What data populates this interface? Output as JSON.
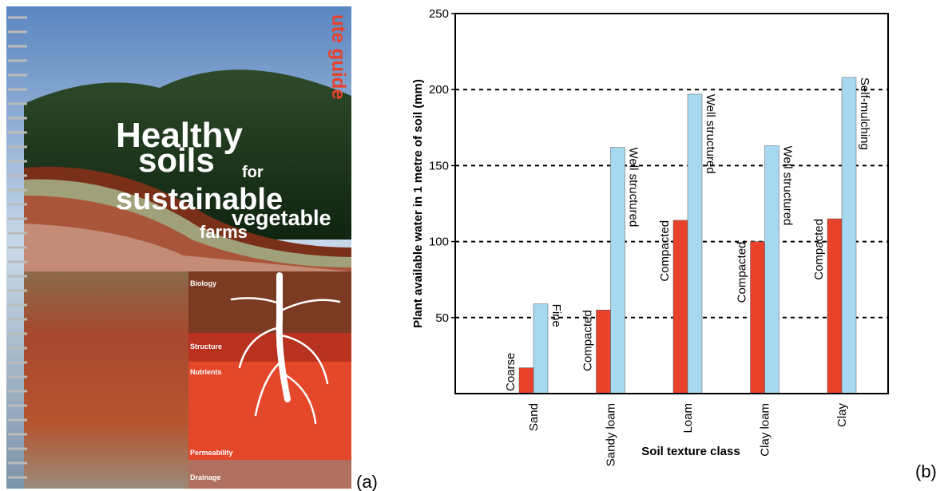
{
  "cover": {
    "series_label": "ute guide",
    "title_lines": [
      "Healthy",
      "soils",
      "for",
      "sustainable",
      "vegetable",
      "farms"
    ],
    "layers": [
      "Biology",
      "Structure",
      "Nutrients",
      "Permeability",
      "Drainage"
    ]
  },
  "panel_labels": [
    "(a)",
    "(b)"
  ],
  "chart_data": {
    "type": "bar",
    "y_label": "Plant available water in 1 metre of soil (mm)",
    "x_label": "Soil texture class",
    "categories": [
      "Sand",
      "Sandy loam",
      "Loam",
      "Clay loam",
      "Clay"
    ],
    "series": [
      {
        "color": "#e8412c",
        "values": [
          17,
          55,
          114,
          100,
          115
        ],
        "labels": [
          "Coarse",
          "Compacted",
          "Compacted",
          "Compacted",
          "Compacted"
        ]
      },
      {
        "color": "#a6d8ef",
        "values": [
          59,
          162,
          197,
          163,
          208
        ],
        "labels": [
          "Fine",
          "Well structured",
          "Well structured",
          "Well structured",
          "Self-mulching"
        ]
      }
    ],
    "ylim": [
      0,
      250
    ],
    "yticks": [
      50,
      100,
      150,
      200,
      250
    ],
    "grid": true
  }
}
